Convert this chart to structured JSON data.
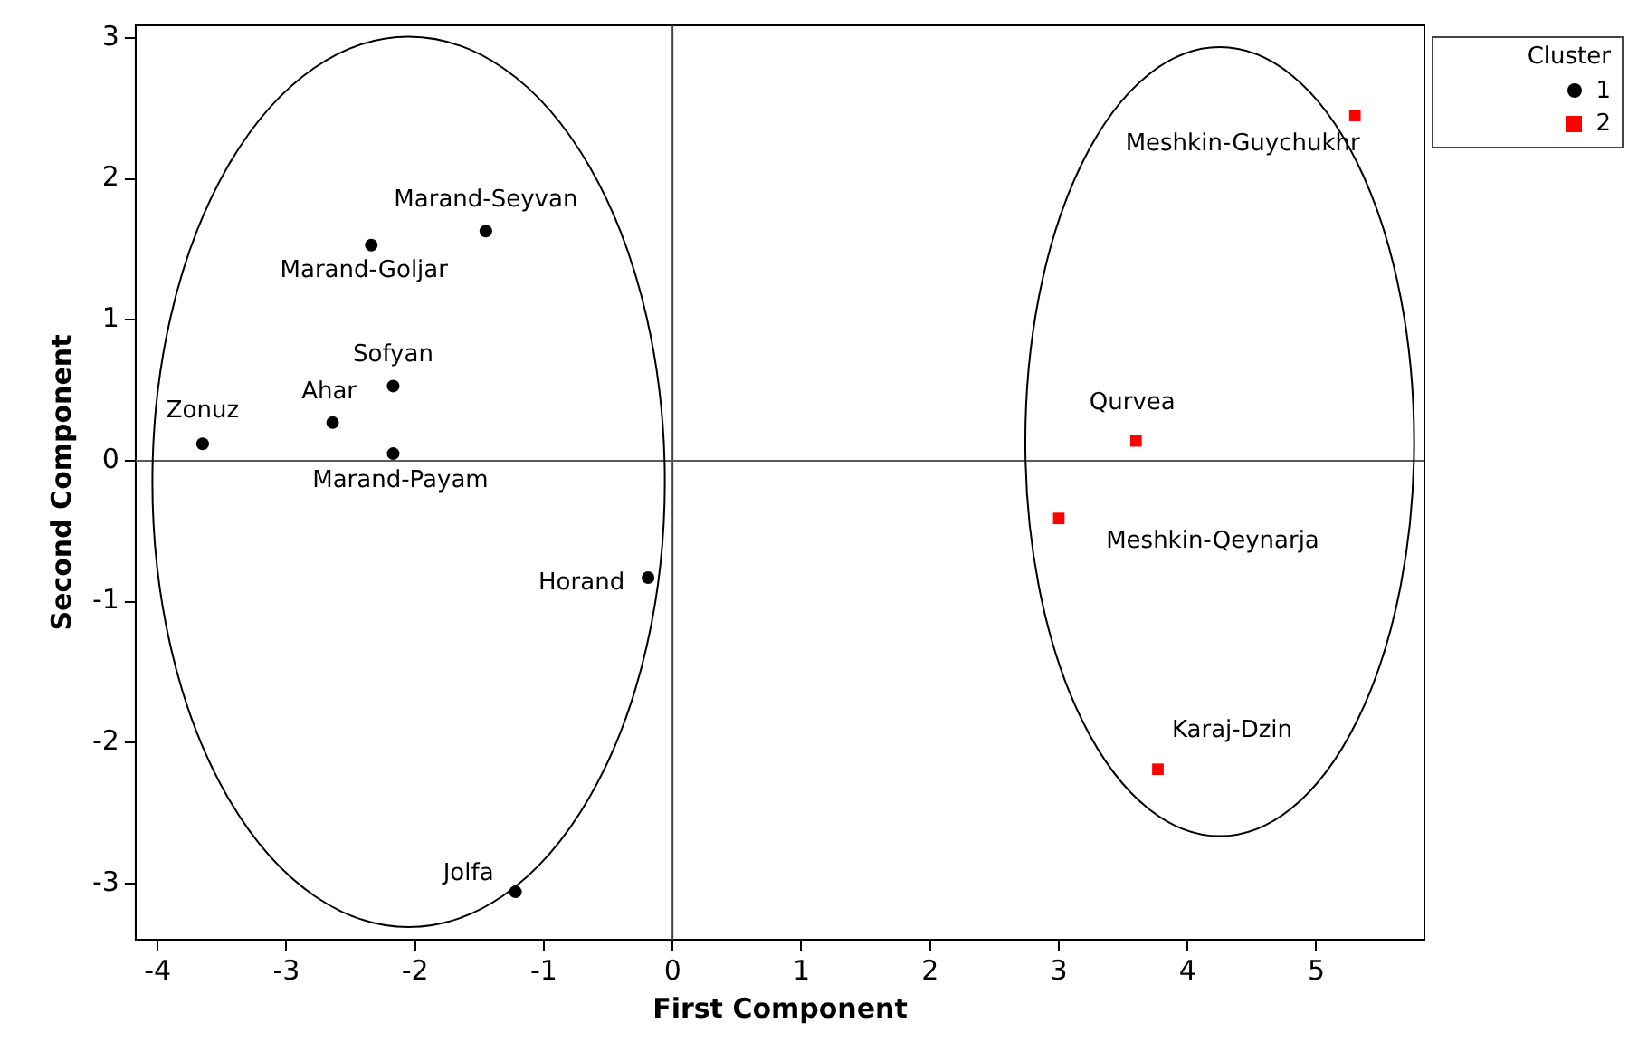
{
  "chart_data": {
    "type": "scatter",
    "xlabel": "First Component",
    "ylabel": "Second Component",
    "legend_title": "Cluster",
    "legend": "top right",
    "grid": false,
    "xlim": [
      -4.17,
      5.84
    ],
    "xticks": [
      -4,
      -3,
      -2,
      -1,
      0,
      1,
      2,
      3,
      4,
      5
    ],
    "ylim": [
      -3.4,
      3.09
    ],
    "yticks": [
      -3,
      -2,
      -1,
      0,
      1,
      2,
      3
    ],
    "series": [
      {
        "name": "1",
        "color": "#000000",
        "marker": "circle",
        "x": [
          -3.65,
          -2.64,
          -2.17,
          -2.17,
          -2.34,
          -1.45,
          -0.19,
          -1.22
        ],
        "values": [
          0.12,
          0.27,
          0.53,
          0.05,
          1.53,
          1.63,
          -0.83,
          -3.06
        ]
      },
      {
        "name": "2",
        "color": "#ff0000",
        "marker": "square",
        "x": [
          5.3,
          3.6,
          3.0,
          3.77
        ],
        "values": [
          2.45,
          0.14,
          -0.41,
          -2.19
        ]
      }
    ],
    "ref_lines": [
      {
        "axis": "x",
        "value": 0
      },
      {
        "axis": "y",
        "value": 0
      }
    ],
    "annotations": [
      {
        "text": "Zonuz",
        "x": -3.65,
        "y": 0.12
      },
      {
        "text": "Ahar",
        "x": -2.64,
        "y": 0.27
      },
      {
        "text": "Sofyan",
        "x": -2.17,
        "y": 0.53
      },
      {
        "text": "Marand-Payam",
        "x": -2.17,
        "y": 0.05
      },
      {
        "text": "Marand-Goljar",
        "x": -2.34,
        "y": 1.53
      },
      {
        "text": "Marand-Seyvan",
        "x": -1.45,
        "y": 1.63
      },
      {
        "text": "Horand",
        "x": -0.19,
        "y": -0.83
      },
      {
        "text": "Jolfa",
        "x": -1.22,
        "y": -3.06
      },
      {
        "text": "Meshkin-Guychukhr",
        "x": 5.3,
        "y": 2.45
      },
      {
        "text": "Qurvea",
        "x": 3.6,
        "y": 0.14
      },
      {
        "text": "Meshkin-Qeynarja",
        "x": 3.0,
        "y": -0.41
      },
      {
        "text": "Karaj-Dzin",
        "x": 3.77,
        "y": -2.19
      }
    ]
  }
}
